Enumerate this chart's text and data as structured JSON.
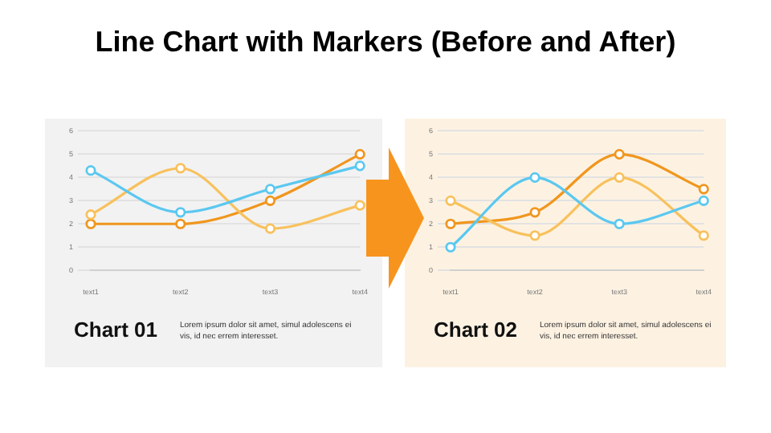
{
  "chart_data": [
    {
      "type": "line",
      "title": "Line Chart with Markers (Before and After)",
      "subtitle": "Chart 01",
      "annotations": [
        "Lorem ipsum dolor sit amet, simul adolescens ei vis, id nec errem interesset."
      ],
      "categories": [
        "text1",
        "text2",
        "text3",
        "text4"
      ],
      "series": [
        {
          "color": "#5bc8f0",
          "values": [
            4.3,
            2.5,
            3.5,
            4.5
          ]
        },
        {
          "color": "#f8c15c",
          "values": [
            2.4,
            4.4,
            1.8,
            2.8
          ]
        },
        {
          "color": "#f0961e",
          "values": [
            2,
            2,
            3,
            5
          ]
        }
      ],
      "ylim": [
        0,
        6
      ],
      "yticks": [
        0,
        1,
        2,
        3,
        4,
        5,
        6
      ],
      "grid": "y",
      "legend": false,
      "marker": "circle",
      "line_style": "solid"
    },
    {
      "type": "line",
      "subtitle": "Chart 02",
      "annotations": [
        "Lorem ipsum dolor sit amet, simul adolescens ei vis, id nec errem interesset."
      ],
      "categories": [
        "text1",
        "text2",
        "text3",
        "text4"
      ],
      "series": [
        {
          "color": "#5bc8f0",
          "values": [
            1,
            4,
            2,
            3
          ]
        },
        {
          "color": "#f8c15c",
          "values": [
            3,
            1.5,
            4,
            1.5
          ]
        },
        {
          "color": "#f0961e",
          "values": [
            2,
            2.5,
            5,
            3.5
          ]
        }
      ],
      "ylim": [
        0,
        6
      ],
      "yticks": [
        0,
        1,
        2,
        3,
        4,
        5,
        6
      ],
      "grid": "y",
      "legend": false,
      "marker": "circle",
      "line_style": "solid"
    }
  ]
}
